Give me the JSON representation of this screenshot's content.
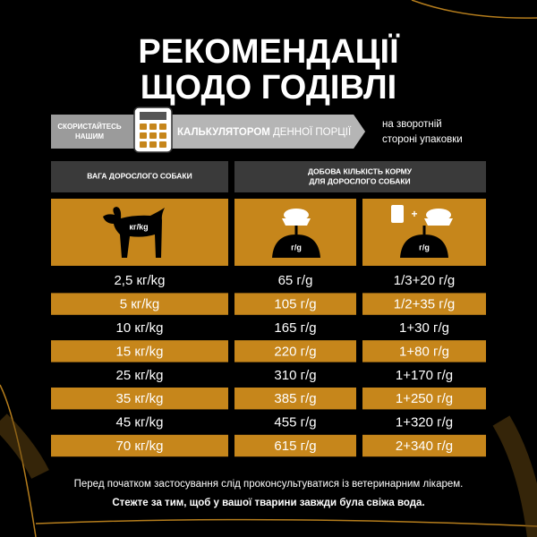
{
  "title": {
    "lines": [
      "РЕКОМЕНДАЦІЇ",
      "ЩОДО ГОДІВЛІ"
    ]
  },
  "banner": {
    "prefix": [
      "СКОРИСТАЙТЕСЬ",
      "НАШИМ"
    ],
    "highlight_bold": "КАЛЬКУЛЯТОРОМ",
    "highlight_rest": "ДЕННОЇ ПОРЦІЇ",
    "note": [
      "на зворотній",
      "стороні упаковки"
    ]
  },
  "table": {
    "headers": [
      [
        "ВАГА ДОРОСЛОГО СОБАКИ"
      ],
      [
        "ДОБОВА КІЛЬКІСТЬ КОРМУ",
        "ДЛЯ ДОРОСЛОГО  СОБАКИ"
      ]
    ],
    "icon_labels": [
      "кг/kg",
      "г/g",
      "г/g"
    ],
    "icon_plus": "+",
    "rows": [
      [
        "2,5 кг/kg",
        "65 г/g",
        "1/3+20 г/g"
      ],
      [
        "5 кг/kg",
        "105 г/g",
        "1/2+35 г/g"
      ],
      [
        "10 кг/kg",
        "165 г/g",
        "1+30 г/g"
      ],
      [
        "15 кг/kg",
        "220 г/g",
        "1+80 г/g"
      ],
      [
        "25 кг/kg",
        "310 г/g",
        "1+170 г/g"
      ],
      [
        "35 кг/kg",
        "385 г/g",
        "1+250 г/g"
      ],
      [
        "45 кг/kg",
        "455 г/g",
        "1+320 г/g"
      ],
      [
        "70 кг/kg",
        "615 г/g",
        "2+340 г/g"
      ]
    ]
  },
  "footer": {
    "line1": "Перед початком застосування слід проконсультуватися із ветеринарним лікарем.",
    "line2": "Стежте за тим, щоб у вашої тварини завжди була свіжа вода."
  }
}
